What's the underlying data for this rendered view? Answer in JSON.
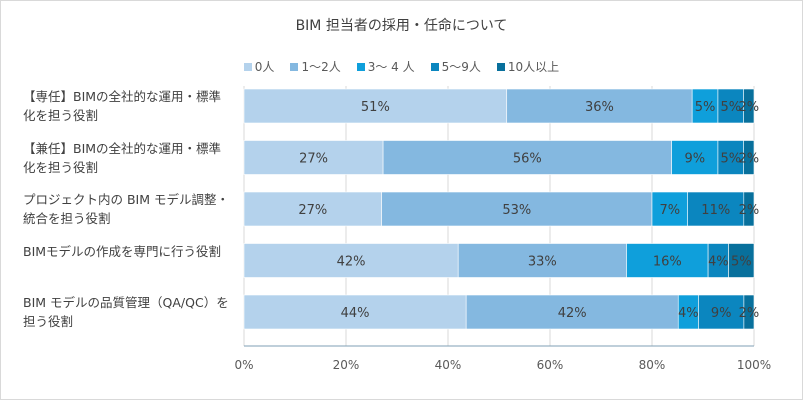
{
  "chart_data": {
    "type": "bar",
    "orientation": "horizontal",
    "stacked": "percent",
    "title": "BIM 担当者の採用・任命について",
    "categories": [
      "【専任】BIMの全社的な運用・標準化を担う役割",
      "【兼任】BIMの全社的な運用・標準化を担う役割",
      "プロジェクト内の BIM モデル調整・統合を担う役割",
      "BIMモデルの作成を専門に行う役割",
      "BIM モデルの品質管理（QA/QC）を担う役割"
    ],
    "series": [
      {
        "name": "0人",
        "color": "#b4d2ec",
        "values": [
          51,
          27,
          27,
          42,
          44
        ]
      },
      {
        "name": "1〜2人",
        "color": "#84b8e0",
        "values": [
          36,
          56,
          53,
          33,
          42
        ]
      },
      {
        "name": "3〜 4 人",
        "color": "#0f9fdb",
        "values": [
          5,
          9,
          7,
          16,
          4
        ]
      },
      {
        "name": "5〜9人",
        "color": "#0b86bf",
        "values": [
          5,
          5,
          11,
          4,
          9
        ]
      },
      {
        "name": "10人以上",
        "color": "#08709c",
        "values": [
          2,
          2,
          2,
          5,
          2
        ]
      }
    ],
    "xticks": [
      "0%",
      "20%",
      "40%",
      "60%",
      "80%",
      "100%"
    ],
    "xlim": [
      0,
      100
    ],
    "grid": true,
    "legend": "top"
  }
}
